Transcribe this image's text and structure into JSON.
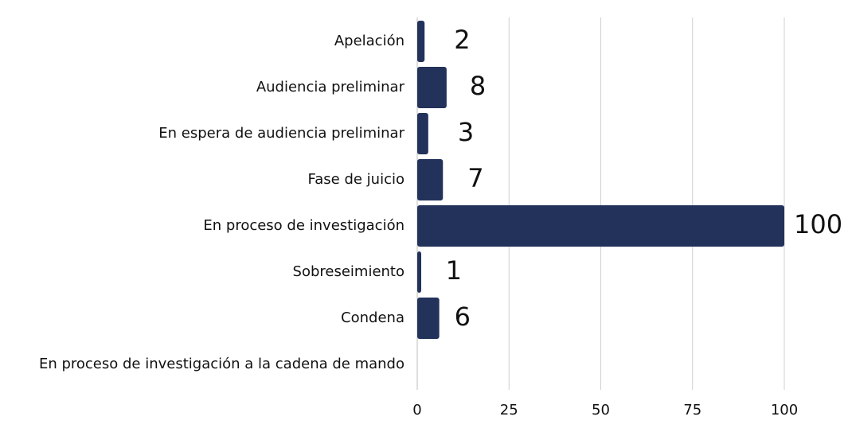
{
  "chart_data": {
    "type": "bar",
    "orientation": "horizontal",
    "categories": [
      "Apelación",
      "Audiencia preliminar",
      "En espera de audiencia preliminar",
      "Fase de juicio",
      "En proceso de investigación",
      "Sobreseimiento",
      "Condena",
      "En proceso de investigación a la cadena de mando"
    ],
    "values": [
      2,
      8,
      3,
      7,
      100,
      1,
      6,
      0
    ],
    "data_labels": [
      "2",
      "8",
      "3",
      "7",
      "100",
      "1",
      "6",
      ""
    ],
    "x_ticks": [
      "0",
      "25",
      "50",
      "75",
      "100"
    ],
    "xlim": [
      0,
      100
    ],
    "grid": "vertical",
    "legend": "none",
    "bar_color": "#22325a",
    "title": "",
    "xlabel": "",
    "ylabel": ""
  }
}
